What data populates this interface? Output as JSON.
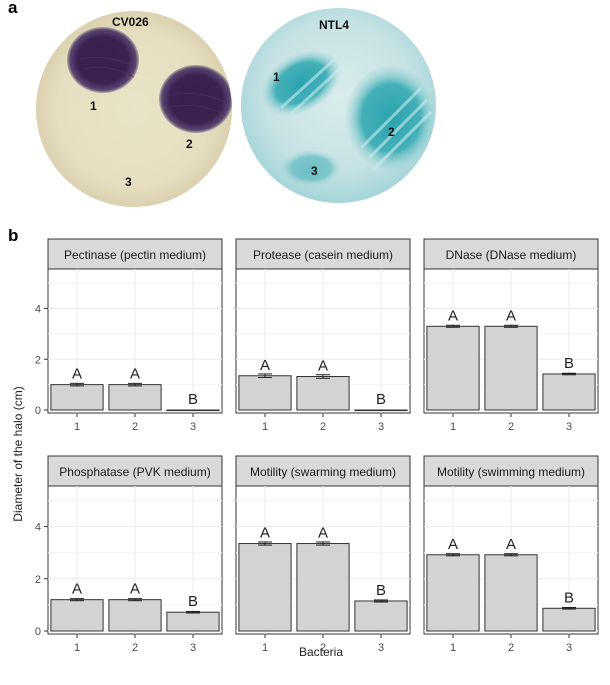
{
  "panel_letters": {
    "a": "a",
    "b": "b"
  },
  "plates": [
    {
      "label": "CV026",
      "colonies": [
        "1",
        "2",
        "3"
      ],
      "color": "#3a2150"
    },
    {
      "label": "NTL4",
      "colonies": [
        "1",
        "2",
        "3"
      ],
      "color": "#2aa3ad"
    }
  ],
  "chart_data": {
    "type": "bar",
    "xlabel": "Bacteria",
    "ylabel": "Diameter of the halo (cm)",
    "ylim": [
      0,
      5.4
    ],
    "yticks": [
      0,
      2,
      4
    ],
    "categories": [
      "1",
      "2",
      "3"
    ],
    "grid": true,
    "bar_color": "#d3d3d3",
    "facets": [
      {
        "title": "Pectinase (pectin medium)",
        "values": [
          1.0,
          1.0,
          0.0
        ],
        "errors": [
          0.05,
          0.05,
          0.0
        ],
        "letters": [
          "A",
          "A",
          "B"
        ]
      },
      {
        "title": "Protease (casein medium)",
        "values": [
          1.35,
          1.32,
          0.0
        ],
        "errors": [
          0.07,
          0.07,
          0.0
        ],
        "letters": [
          "A",
          "A",
          "B"
        ]
      },
      {
        "title": "DNase (DNase medium)",
        "values": [
          3.3,
          3.3,
          1.42
        ],
        "errors": [
          0.04,
          0.04,
          0.03
        ],
        "letters": [
          "A",
          "A",
          "B"
        ]
      },
      {
        "title": "Phosphatase (PVK medium)",
        "values": [
          1.2,
          1.2,
          0.72
        ],
        "errors": [
          0.04,
          0.04,
          0.03
        ],
        "letters": [
          "A",
          "A",
          "B"
        ]
      },
      {
        "title": "Motility (swarming medium)",
        "values": [
          3.35,
          3.35,
          1.15
        ],
        "errors": [
          0.06,
          0.06,
          0.04
        ],
        "letters": [
          "A",
          "A",
          "B"
        ]
      },
      {
        "title": "Motility (swimming medium)",
        "values": [
          2.92,
          2.92,
          0.87
        ],
        "errors": [
          0.04,
          0.04,
          0.03
        ],
        "letters": [
          "A",
          "A",
          "B"
        ]
      }
    ]
  }
}
